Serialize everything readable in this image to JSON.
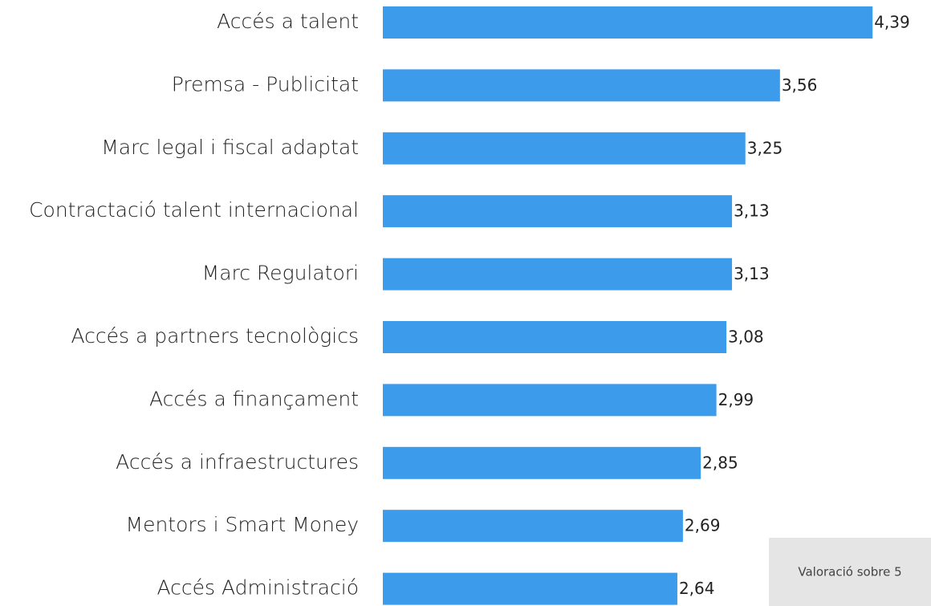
{
  "chart_data": {
    "type": "hbar",
    "categories": [
      "Accés a talent",
      "Premsa - Publicitat",
      "Marc legal i fiscal adaptat",
      "Contractació talent internacional",
      "Marc Regulatori",
      "Accés a partners tecnològics",
      "Accés a finançament",
      "Accés a infraestructures",
      "Mentors  i Smart Money",
      "Accés  Administració"
    ],
    "values": [
      4.39,
      3.56,
      3.25,
      3.13,
      3.13,
      3.08,
      2.99,
      2.85,
      2.69,
      2.64
    ],
    "value_labels": [
      "4,39",
      "3,56",
      "3,25",
      "3,13",
      "3,13",
      "3,08",
      "2,99",
      "2,85",
      "2,69",
      "2,64"
    ],
    "color": "#3d9bec",
    "xlim": [
      0,
      5
    ],
    "note": "Valoració sobre 5"
  }
}
